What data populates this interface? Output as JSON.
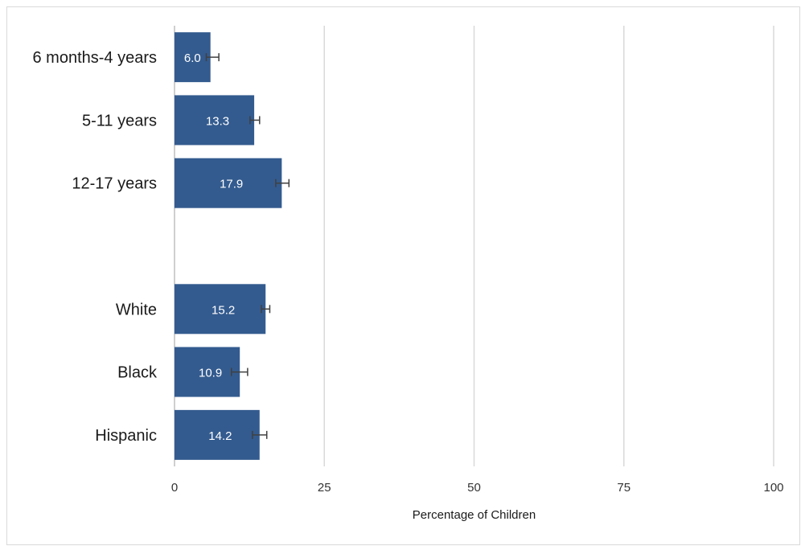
{
  "chart_data": {
    "type": "bar",
    "orientation": "horizontal",
    "title": "",
    "xlabel": "Percentage of Children",
    "ylabel": "",
    "xlim": [
      0,
      100
    ],
    "xticks": [
      0,
      25,
      50,
      75,
      100
    ],
    "grid": "vertical",
    "bar_color": "#335b8f",
    "error_bar_color": "#404040",
    "gridline_color": "#d9d9d9",
    "categories": [
      "6 months-4 years",
      "5-11 years",
      "12-17 years",
      "",
      "White",
      "Black",
      "Hispanic"
    ],
    "values": [
      6.0,
      13.3,
      17.9,
      null,
      15.2,
      10.9,
      14.2
    ],
    "error_low": [
      5.3,
      12.6,
      16.9,
      null,
      14.5,
      9.5,
      13.0
    ],
    "error_high": [
      7.4,
      14.2,
      19.1,
      null,
      15.9,
      12.2,
      15.4
    ],
    "data_labels": [
      "6.0",
      "13.3",
      "17.9",
      "",
      "15.2",
      "10.9",
      "14.2"
    ]
  }
}
